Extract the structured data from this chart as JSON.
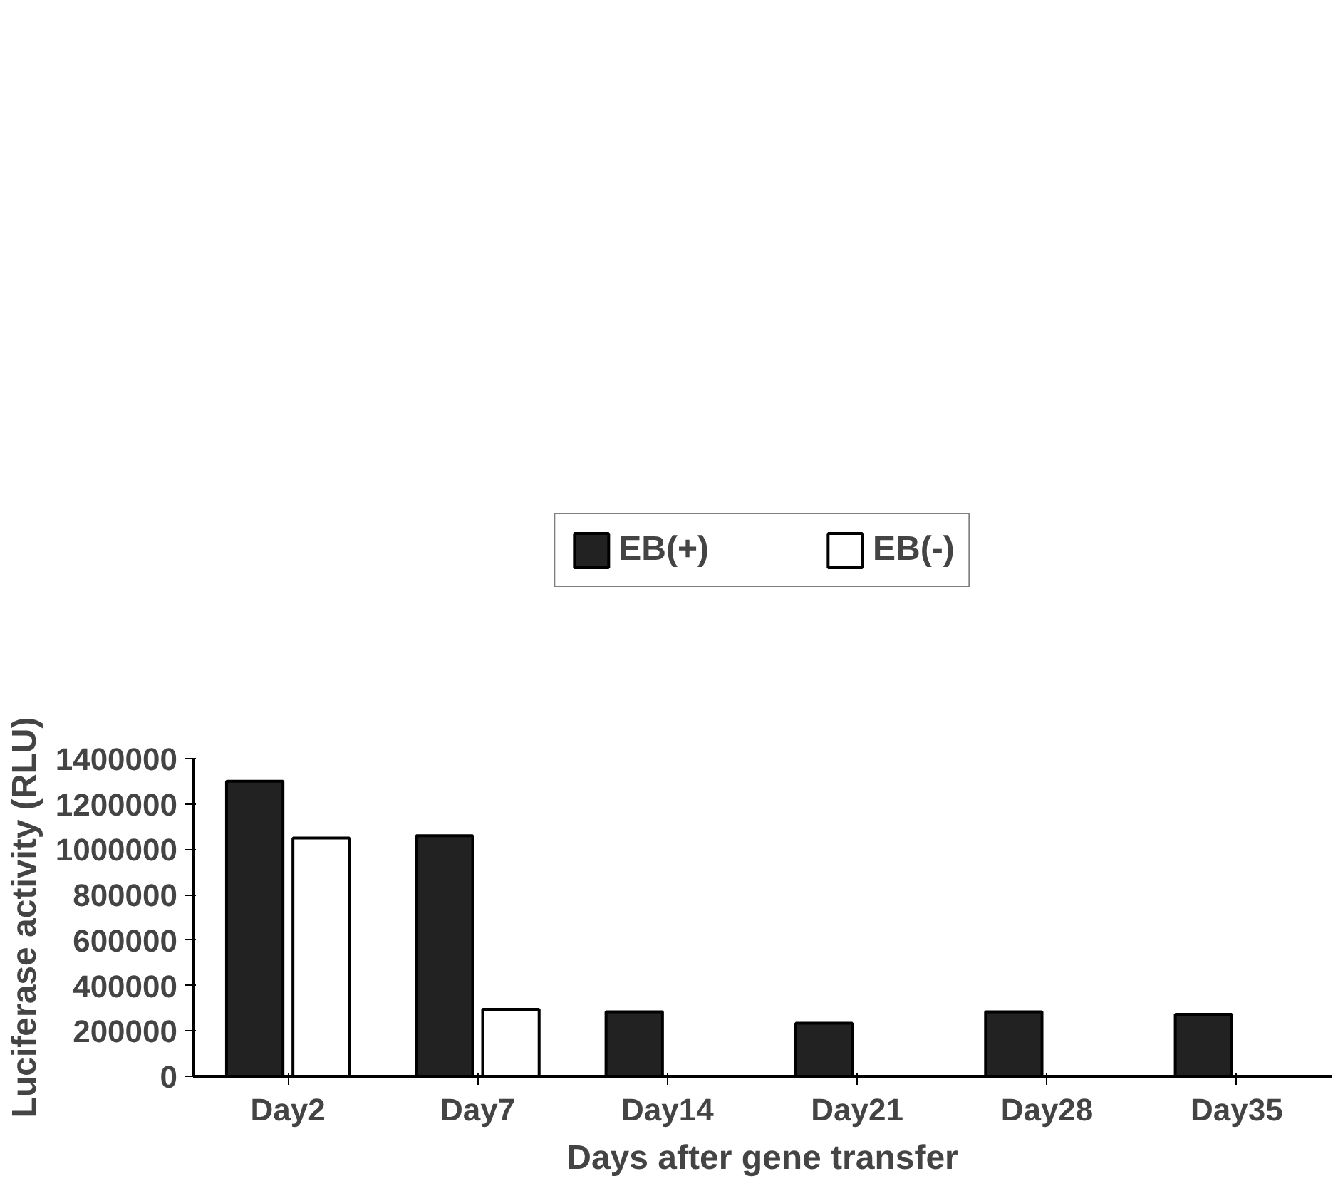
{
  "chart_data": {
    "type": "bar",
    "xlabel": "Days after gene transfer",
    "ylabel": "Luciferase activity (RLU)",
    "categories": [
      "Day2",
      "Day7",
      "Day14",
      "Day21",
      "Day28",
      "Day35"
    ],
    "series": [
      {
        "name": "EB(+)",
        "color": "#222222",
        "values": [
          1300000,
          1060000,
          284000,
          234000,
          284000,
          273000
        ]
      },
      {
        "name": "EB(-)",
        "color": "#ffffff",
        "values": [
          1050000,
          295000,
          0,
          0,
          0,
          0
        ]
      }
    ],
    "ylim": [
      0,
      1400000
    ],
    "yticks": [
      0,
      200000,
      400000,
      600000,
      800000,
      1000000,
      1200000,
      1400000
    ],
    "grid": false,
    "legend": "top"
  }
}
